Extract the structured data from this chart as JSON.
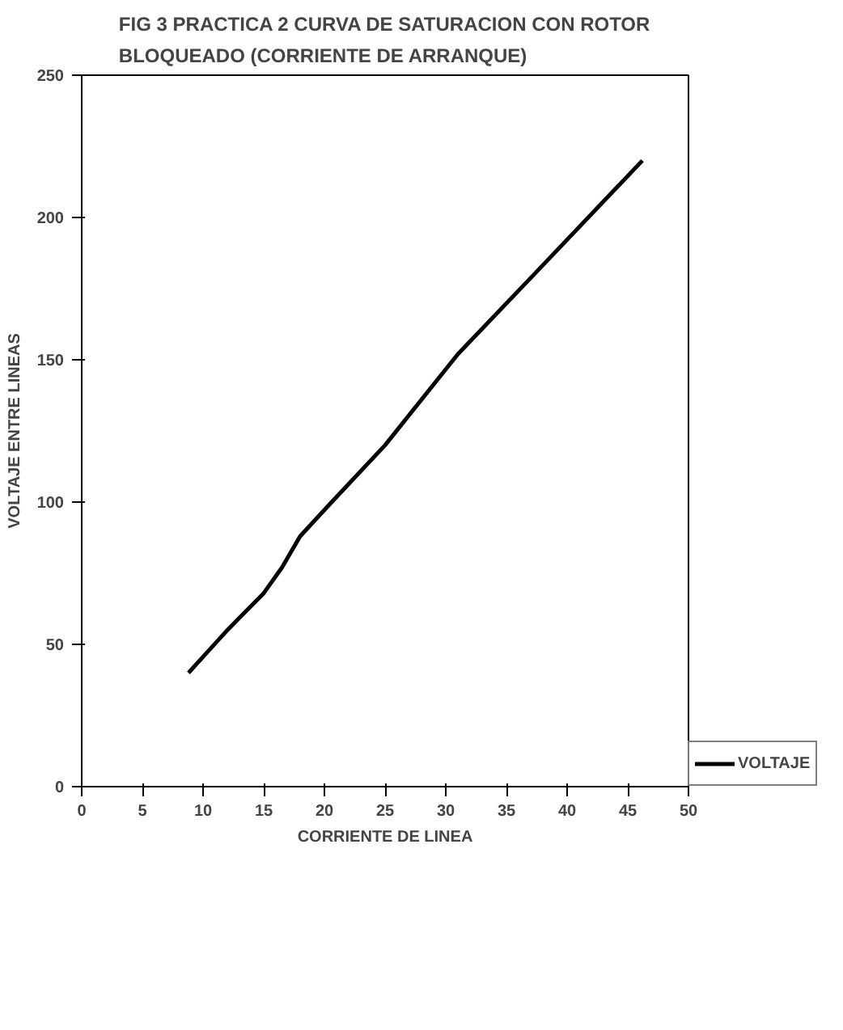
{
  "chart_data": {
    "type": "line",
    "title": "FIG 3 PRACTICA 2 CURVA DE SATURACION CON ROTOR\nBLOQUEADO (CORRIENTE DE ARRANQUE)",
    "xlabel": "CORRIENTE DE LINEA",
    "ylabel": "VOLTAJE ENTRE LINEAS",
    "x": [
      8.8,
      12,
      15,
      16.5,
      18,
      20.6,
      25,
      31,
      37.5,
      46.2
    ],
    "series": [
      {
        "name": "VOLTAJE",
        "color": "#000000",
        "values": [
          40,
          55,
          68,
          77,
          88,
          100,
          120,
          152,
          181,
          220
        ]
      }
    ],
    "xlim": [
      0,
      50
    ],
    "xticks": [
      0,
      5,
      10,
      15,
      20,
      25,
      30,
      35,
      40,
      45,
      50
    ],
    "ylim": [
      0,
      250
    ],
    "yticks": [
      0,
      50,
      100,
      150,
      200,
      250
    ],
    "grid": false,
    "legend": "bottom right",
    "marker": "none",
    "line_style": "solid"
  }
}
